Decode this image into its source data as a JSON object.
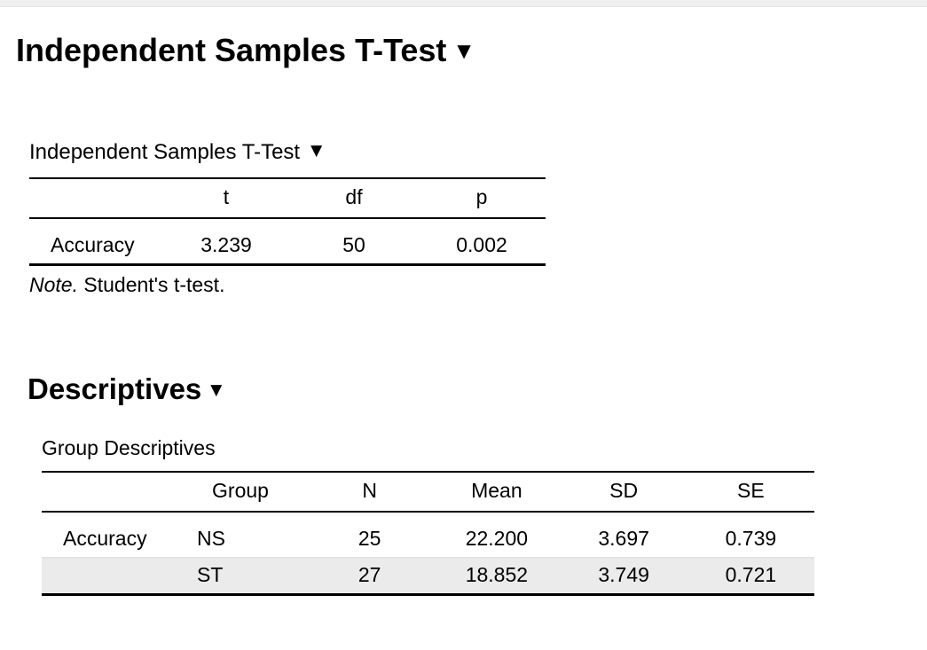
{
  "app": {
    "collapse_icon": "▼"
  },
  "main_header": {
    "title": "Independent Samples T-Test"
  },
  "ttest": {
    "table_title": "Independent Samples T-Test",
    "headers": {
      "t": "t",
      "df": "df",
      "p": "p"
    },
    "rows": [
      {
        "label": "Accuracy",
        "t": "3.239",
        "df": "50",
        "p": "0.002"
      }
    ],
    "note": {
      "prefix": "Note.",
      "text": " Student's t-test."
    }
  },
  "descriptives": {
    "heading": "Descriptives",
    "table_title": "Group Descriptives",
    "headers": {
      "group": "Group",
      "n": "N",
      "mean": "Mean",
      "sd": "SD",
      "se": "SE"
    },
    "rows": [
      {
        "label": "Accuracy",
        "group": "NS",
        "n": "25",
        "mean": "22.200",
        "sd": "3.697",
        "se": "0.739"
      },
      {
        "label": "",
        "group": "ST",
        "n": "27",
        "mean": "18.852",
        "sd": "3.749",
        "se": "0.721"
      }
    ]
  },
  "colors": {
    "stripe": "#ebebeb",
    "top_bar": "#efefef",
    "table_rule": "#000000"
  }
}
